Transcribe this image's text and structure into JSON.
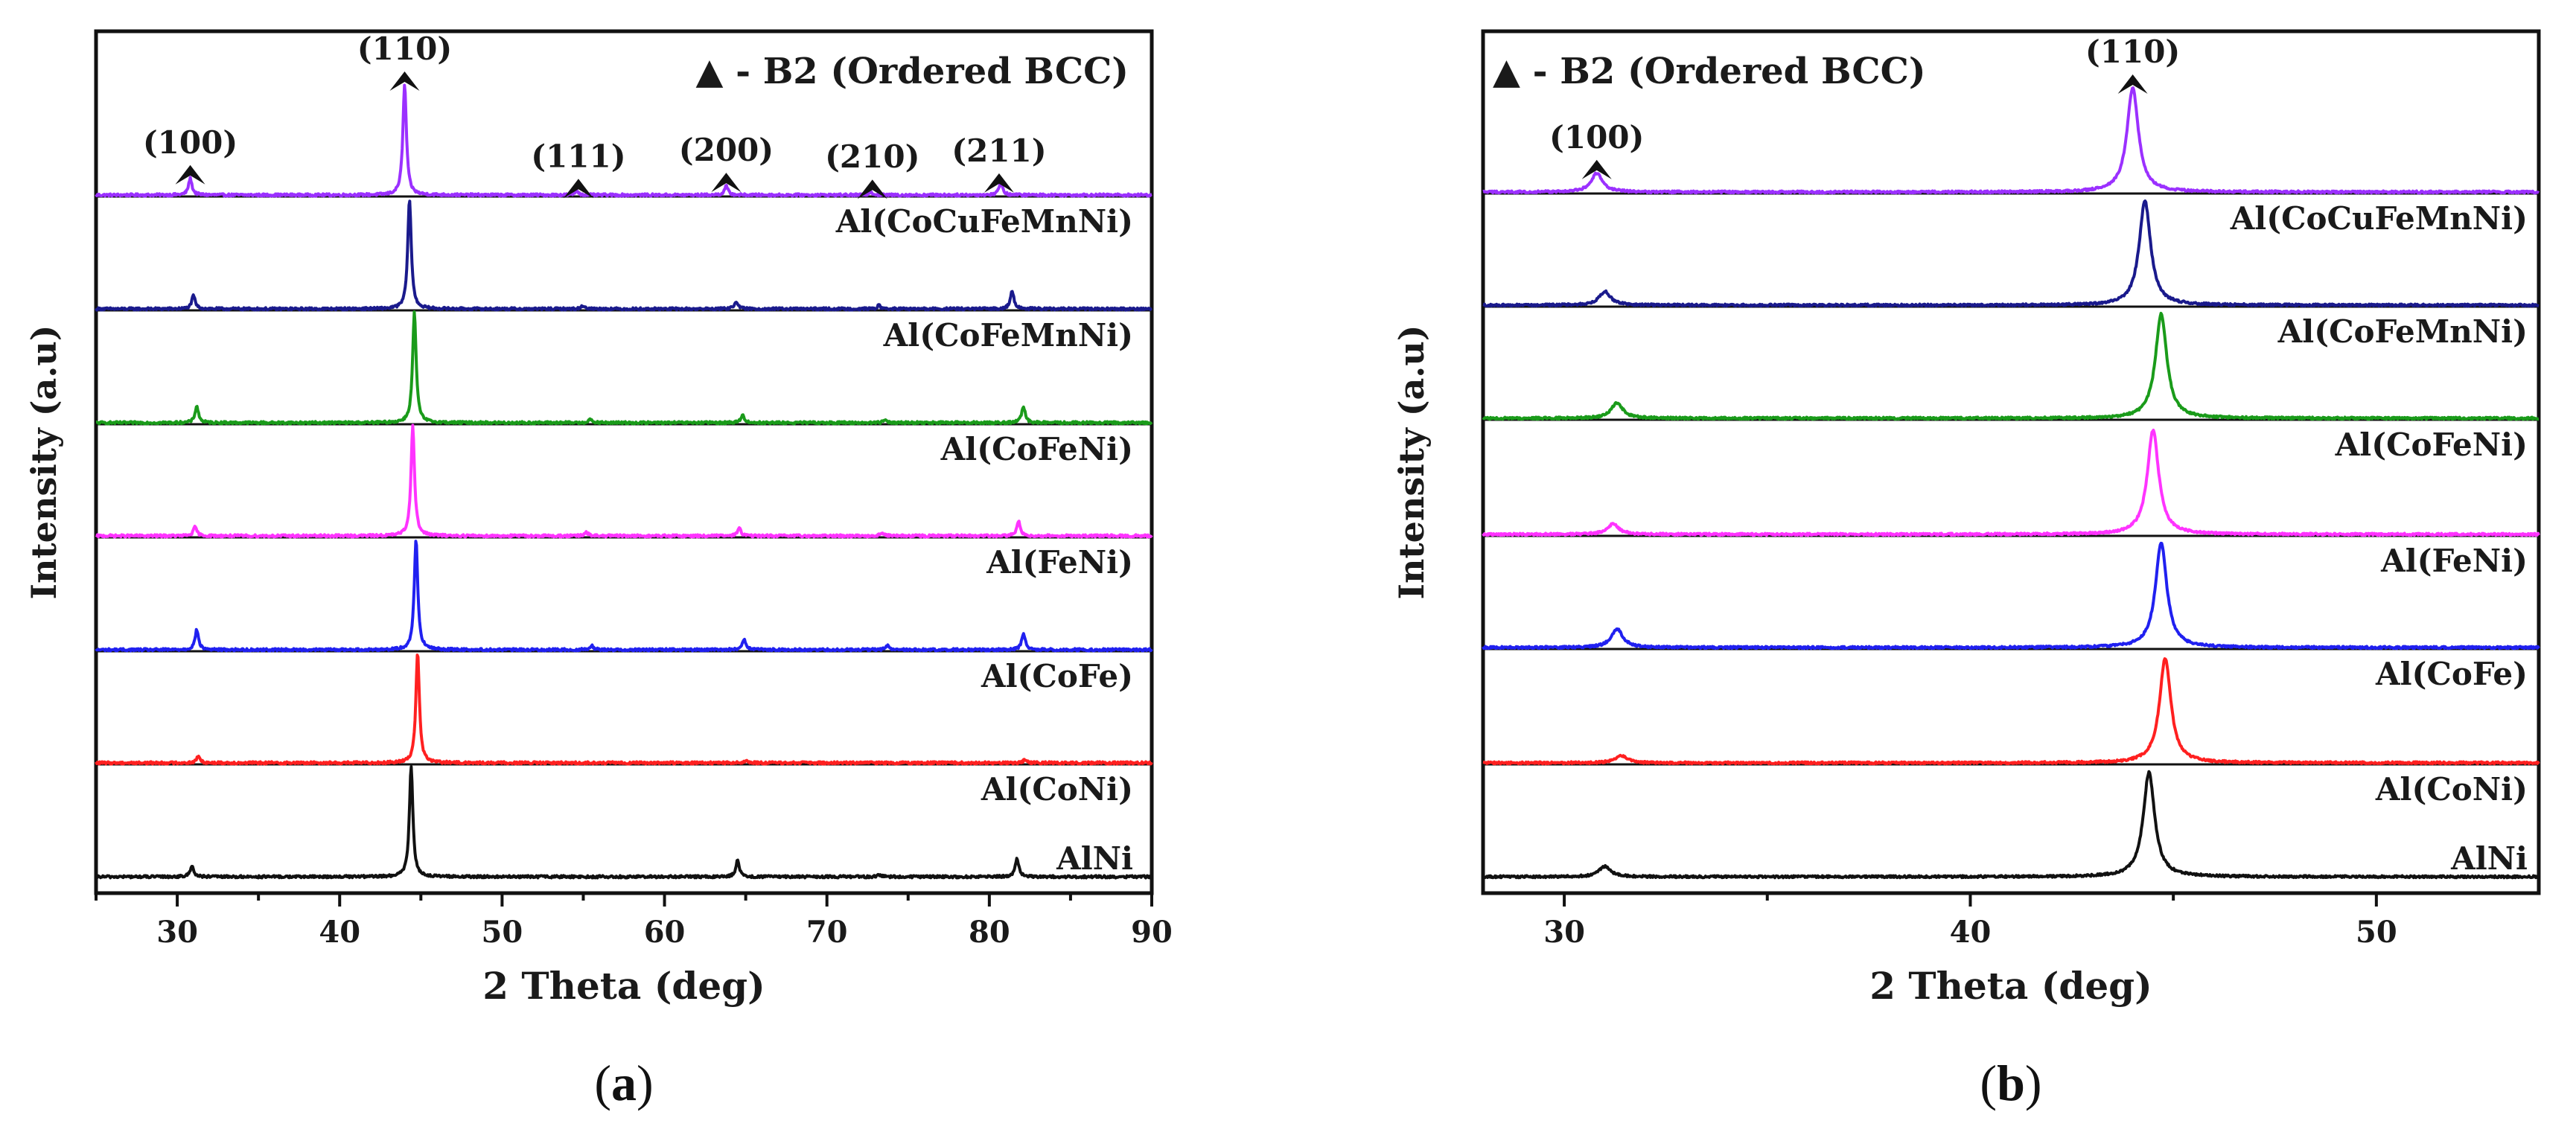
{
  "chart_data": [
    {
      "type": "line",
      "panel_label": "a",
      "xlabel": "2 Theta (deg)",
      "ylabel": "Intensity (a.u)",
      "xlim": [
        25,
        90
      ],
      "xticks": [
        "30",
        "40",
        "50",
        "60",
        "70",
        "80",
        "90"
      ],
      "legend": "▲ - B2 (Ordered BCC)",
      "annotations": [
        {
          "label": "(100)",
          "x": 30.8
        },
        {
          "label": "(110)",
          "x": 44.0
        },
        {
          "label": "(111)",
          "x": 54.7
        },
        {
          "label": "(200)",
          "x": 63.8
        },
        {
          "label": "(210)",
          "x": 72.8
        },
        {
          "label": "(211)",
          "x": 80.6
        }
      ],
      "series": [
        {
          "name": "Al(CoCuFeMnNi)",
          "color": "#9b30ff",
          "peaks": [
            {
              "x": 30.8,
              "h": 0.15
            },
            {
              "x": 44.0,
              "h": 1.0
            },
            {
              "x": 54.6,
              "h": 0.04
            },
            {
              "x": 63.8,
              "h": 0.08
            },
            {
              "x": 72.7,
              "h": 0.03
            },
            {
              "x": 80.7,
              "h": 0.12
            }
          ]
        },
        {
          "name": "Al(CoFeMnNi)",
          "color": "#1a1a8c",
          "peaks": [
            {
              "x": 31.0,
              "h": 0.12
            },
            {
              "x": 44.3,
              "h": 1.0
            },
            {
              "x": 55.0,
              "h": 0.03
            },
            {
              "x": 64.4,
              "h": 0.07
            },
            {
              "x": 73.2,
              "h": 0.03
            },
            {
              "x": 81.4,
              "h": 0.17
            }
          ]
        },
        {
          "name": "Al(CoFeNi)",
          "color": "#1a9b1a",
          "peaks": [
            {
              "x": 31.2,
              "h": 0.15
            },
            {
              "x": 44.6,
              "h": 1.0
            },
            {
              "x": 55.4,
              "h": 0.03
            },
            {
              "x": 64.8,
              "h": 0.07
            },
            {
              "x": 73.6,
              "h": 0.03
            },
            {
              "x": 82.1,
              "h": 0.15
            }
          ]
        },
        {
          "name": "Al(FeNi)",
          "color": "#ff33ff",
          "peaks": [
            {
              "x": 31.1,
              "h": 0.08
            },
            {
              "x": 44.5,
              "h": 1.0
            },
            {
              "x": 55.2,
              "h": 0.03
            },
            {
              "x": 64.6,
              "h": 0.07
            },
            {
              "x": 73.4,
              "h": 0.03
            },
            {
              "x": 81.8,
              "h": 0.13
            }
          ]
        },
        {
          "name": "Al(CoFe)",
          "color": "#2020f0",
          "peaks": [
            {
              "x": 31.2,
              "h": 0.18
            },
            {
              "x": 44.7,
              "h": 1.0
            },
            {
              "x": 55.5,
              "h": 0.04
            },
            {
              "x": 64.9,
              "h": 0.1
            },
            {
              "x": 73.7,
              "h": 0.04
            },
            {
              "x": 82.1,
              "h": 0.15
            }
          ]
        },
        {
          "name": "Al(CoNi)",
          "color": "#ff2020",
          "peaks": [
            {
              "x": 31.3,
              "h": 0.06
            },
            {
              "x": 44.8,
              "h": 1.0
            },
            {
              "x": 65.0,
              "h": 0.02
            },
            {
              "x": 82.2,
              "h": 0.03
            }
          ]
        },
        {
          "name": "AlNi",
          "color": "#111111",
          "peaks": [
            {
              "x": 30.9,
              "h": 0.1
            },
            {
              "x": 44.4,
              "h": 1.0
            },
            {
              "x": 64.5,
              "h": 0.15
            },
            {
              "x": 73.2,
              "h": 0.02
            },
            {
              "x": 81.7,
              "h": 0.17
            }
          ]
        }
      ]
    },
    {
      "type": "line",
      "panel_label": "b",
      "xlabel": "2 Theta (deg)",
      "ylabel": "Intensity (a.u)",
      "xlim": [
        28,
        54
      ],
      "xticks": [
        "30",
        "40",
        "50"
      ],
      "legend": "▲ - B2 (Ordered BCC)",
      "annotations": [
        {
          "label": "(100)",
          "x": 30.8
        },
        {
          "label": "(110)",
          "x": 44.0
        }
      ],
      "series": [
        {
          "name": "Al(CoCuFeMnNi)",
          "color": "#9b30ff",
          "peaks": [
            {
              "x": 30.8,
              "h": 0.18
            },
            {
              "x": 44.0,
              "h": 1.0
            }
          ]
        },
        {
          "name": "Al(CoFeMnNi)",
          "color": "#1a1a8c",
          "peaks": [
            {
              "x": 31.0,
              "h": 0.13
            },
            {
              "x": 44.3,
              "h": 1.0
            }
          ]
        },
        {
          "name": "Al(CoFeNi)",
          "color": "#1a9b1a",
          "peaks": [
            {
              "x": 31.3,
              "h": 0.15
            },
            {
              "x": 44.7,
              "h": 1.0
            }
          ]
        },
        {
          "name": "Al(FeNi)",
          "color": "#ff33ff",
          "peaks": [
            {
              "x": 31.2,
              "h": 0.1
            },
            {
              "x": 44.5,
              "h": 1.0
            }
          ]
        },
        {
          "name": "Al(CoFe)",
          "color": "#2020f0",
          "peaks": [
            {
              "x": 31.3,
              "h": 0.18
            },
            {
              "x": 44.7,
              "h": 1.0
            }
          ]
        },
        {
          "name": "Al(CoNi)",
          "color": "#ff2020",
          "peaks": [
            {
              "x": 31.4,
              "h": 0.07
            },
            {
              "x": 44.8,
              "h": 1.0
            }
          ]
        },
        {
          "name": "AlNi",
          "color": "#111111",
          "peaks": [
            {
              "x": 31.0,
              "h": 0.1
            },
            {
              "x": 44.4,
              "h": 1.0
            }
          ]
        }
      ]
    }
  ]
}
